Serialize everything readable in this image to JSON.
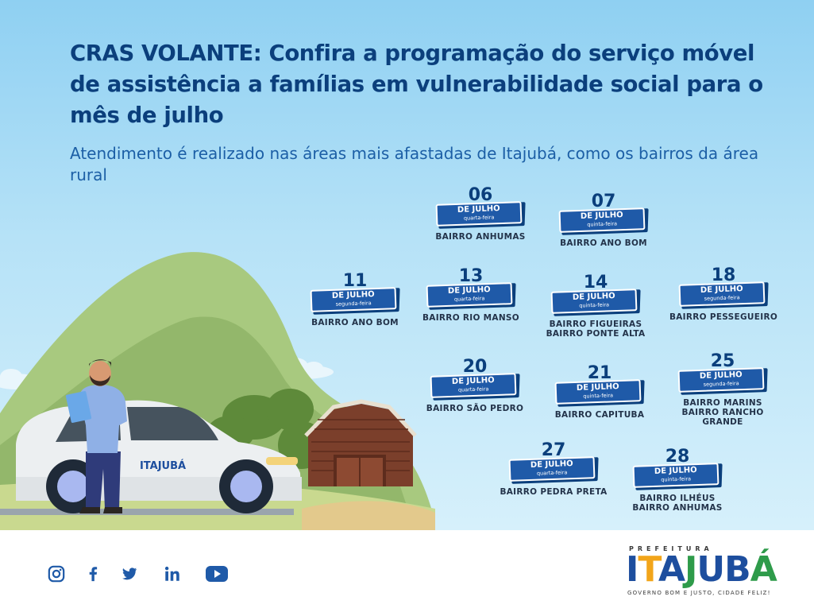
{
  "header": {
    "title": "CRAS VOLANTE: Confira a programação do serviço móvel de assistência a famílias em vulnerabilidade social para o mês de julho",
    "subtitle": "Atendimento é realizado nas áreas mais afastadas de Itajubá, como os bairros da área rural"
  },
  "schedule": [
    {
      "day": "06",
      "month": "DE JULHO",
      "weekday": "quarta-feira",
      "places": [
        "BAIRRO ANHUMAS"
      ]
    },
    {
      "day": "07",
      "month": "DE JULHO",
      "weekday": "quinta-feira",
      "places": [
        "BAIRRO ANO BOM"
      ]
    },
    {
      "day": "11",
      "month": "DE JULHO",
      "weekday": "segunda-feira",
      "places": [
        "BAIRRO ANO BOM"
      ]
    },
    {
      "day": "13",
      "month": "DE JULHO",
      "weekday": "quarta-feira",
      "places": [
        "BAIRRO RIO MANSO"
      ]
    },
    {
      "day": "14",
      "month": "DE JULHO",
      "weekday": "quinta-feira",
      "places": [
        "BAIRRO FIGUEIRAS",
        "BAIRRO PONTE ALTA"
      ]
    },
    {
      "day": "18",
      "month": "DE JULHO",
      "weekday": "segunda-feira",
      "places": [
        "BAIRRO PESSEGUEIRO"
      ]
    },
    {
      "day": "20",
      "month": "DE JULHO",
      "weekday": "quarta-feira",
      "places": [
        "BAIRRO SÃO PEDRO"
      ]
    },
    {
      "day": "21",
      "month": "DE JULHO",
      "weekday": "quinta-feira",
      "places": [
        "BAIRRO CAPITUBA"
      ]
    },
    {
      "day": "25",
      "month": "DE JULHO",
      "weekday": "segunda-feira",
      "places": [
        "BAIRRO MARINS",
        "BAIRRO RANCHO",
        "GRANDE"
      ]
    },
    {
      "day": "27",
      "month": "DE JULHO",
      "weekday": "quarta-feira",
      "places": [
        "BAIRRO PEDRA PRETA"
      ]
    },
    {
      "day": "28",
      "month": "DE JULHO",
      "weekday": "quinta-feira",
      "places": [
        "BAIRRO ILHÉUS",
        "BAIRRO ANHUMAS"
      ]
    }
  ],
  "illustration": {
    "car_logo": "ITAJUBÁ"
  },
  "footer": {
    "social_icons": [
      "instagram-icon",
      "facebook-icon",
      "twitter-icon",
      "linkedin-icon",
      "youtube-icon"
    ],
    "logo": {
      "prefix": "PREFEITURA",
      "name": "ITAJUBÁ",
      "letters": [
        "I",
        "T",
        "A",
        "J",
        "U",
        "B",
        "Á"
      ],
      "letter_colors": [
        "#1d4e9e",
        "#f2a51a",
        "#1d4e9e",
        "#2e9b4a",
        "#1d4e9e",
        "#1d4e9e",
        "#2e9b4a"
      ],
      "motto": "GOVERNO BOM E JUSTO, CIDADE FELIZ!"
    }
  },
  "colors": {
    "title": "#0b3f7c",
    "subtitle": "#1c5fa6",
    "tag": "#1f5aa8",
    "sky_top": "#8fd0f2"
  }
}
